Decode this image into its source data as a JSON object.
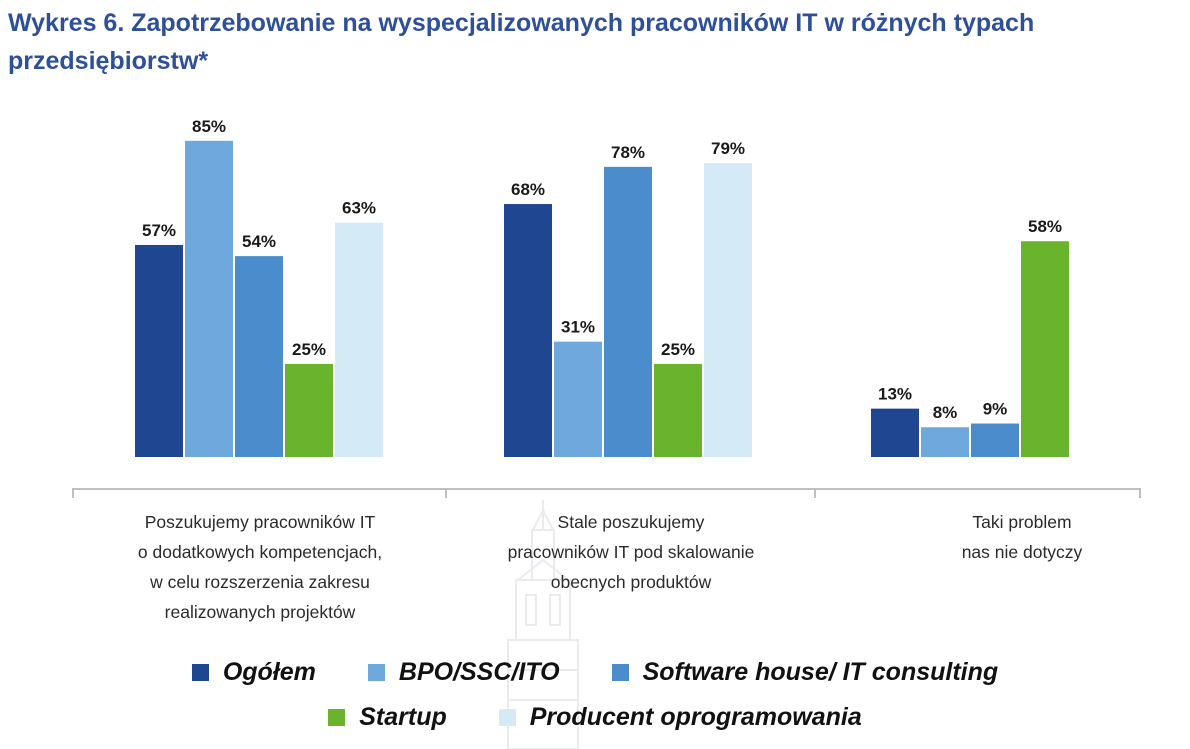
{
  "title": "Wykres 6. Zapotrzebowanie na wyspecjalizowanych pracowników IT w różnych typach przedsiębiorstw*",
  "chart_data": {
    "type": "bar",
    "categories": [
      "Poszukujemy pracowników IT\no dodatkowych kompetencjach,\nw celu rozszerzenia zakresu\nrealizowanych projektów",
      "Stale poszukujemy\npracowników IT pod skalowanie\nobecnych produktów",
      "Taki problem\nnas nie dotyczy"
    ],
    "series": [
      {
        "name": "Ogółem",
        "color": "#1f4691",
        "values": [
          57,
          68,
          13
        ],
        "labels": [
          "57%",
          "68%",
          "13%"
        ]
      },
      {
        "name": "BPO/SSC/ITO",
        "color": "#6fa8dc",
        "values": [
          85,
          31,
          8
        ],
        "labels": [
          "85%",
          "31%",
          "8%"
        ]
      },
      {
        "name": "Software house/ IT consulting",
        "color": "#4a8ccc",
        "values": [
          54,
          78,
          9
        ],
        "labels": [
          "54%",
          "78%",
          "9%"
        ]
      },
      {
        "name": "Startup",
        "color": "#6ab42d",
        "values": [
          25,
          25,
          58
        ],
        "labels": [
          "25%",
          "25%",
          "58%"
        ]
      },
      {
        "name": "Producent oprogramowania",
        "color": "#d4eaf7",
        "values": [
          63,
          79,
          null
        ],
        "labels": [
          "63%",
          "79%",
          ""
        ]
      }
    ],
    "ylim": [
      0,
      100
    ],
    "grid": false,
    "legend_position": "bottom",
    "legend_rows": [
      [
        0,
        1,
        2
      ],
      [
        3,
        4
      ]
    ]
  }
}
